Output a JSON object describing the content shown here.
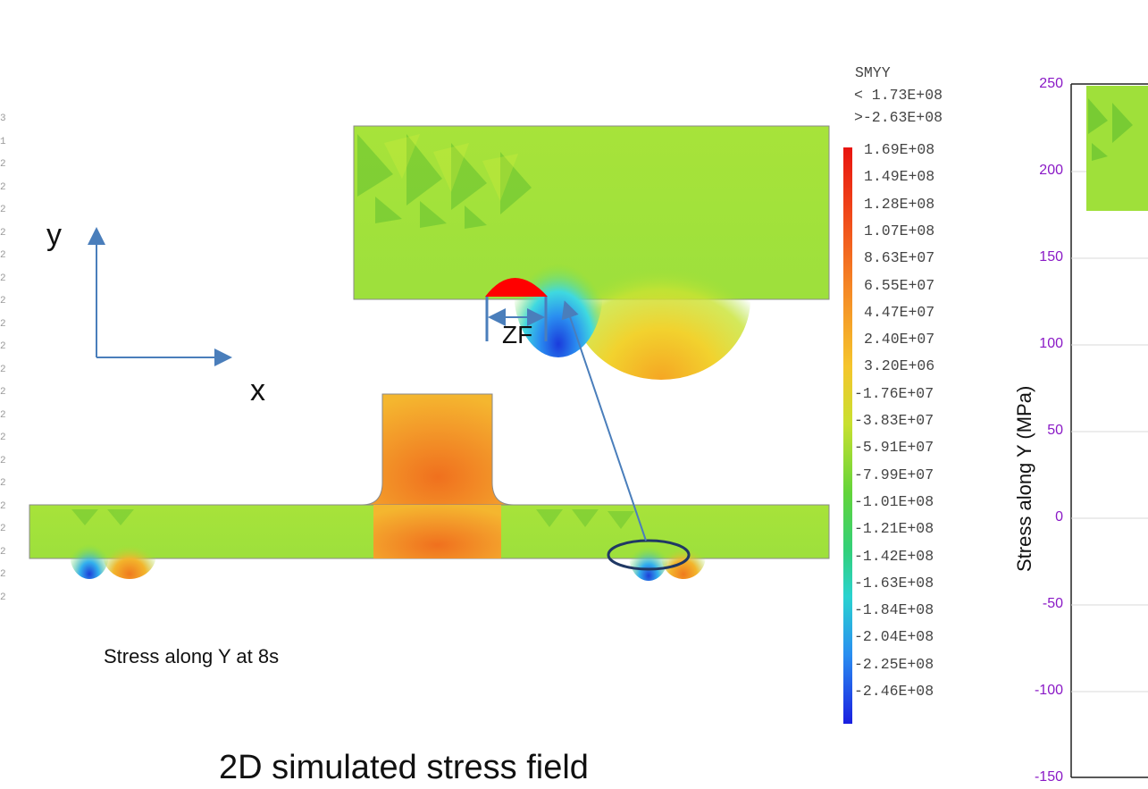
{
  "axes_labels": {
    "y": "y",
    "x": "x"
  },
  "zone_label": "ZF",
  "caption_small": "Stress along Y at 8s",
  "caption_large": "2D simulated stress field",
  "colorbar": {
    "title": "SMYY",
    "max_note": "< 1.73E+08",
    "min_note": ">-2.63E+08",
    "levels": [
      "1.69E+08",
      "1.49E+08",
      "1.28E+08",
      "1.07E+08",
      "8.63E+07",
      "6.55E+07",
      "4.47E+07",
      "2.40E+07",
      "3.20E+06",
      "-1.76E+07",
      "-3.83E+07",
      "-5.91E+07",
      "-7.99E+07",
      "-1.01E+08",
      "-1.21E+08",
      "-1.42E+08",
      "-1.63E+08",
      "-1.84E+08",
      "-2.04E+08",
      "-2.25E+08",
      "-2.46E+08"
    ]
  },
  "right_plot": {
    "ylabel": "Stress along Y (MPa)",
    "yticks": [
      "250",
      "200",
      "150",
      "100",
      "50",
      "0",
      "-50",
      "-100",
      "-150"
    ]
  },
  "left_margin_marks": [
    "3",
    "1",
    "2",
    "2",
    "2",
    "2",
    "2",
    "2",
    "2",
    "2",
    "2",
    "2",
    "2",
    "2",
    "2",
    "2",
    "2",
    "2",
    "2",
    "2",
    "2",
    "2"
  ],
  "colors": {
    "axis_arrow": "#4a7ebb",
    "zone_fill": "#ff0000",
    "ellipse": "#203864",
    "tick_color": "#8a19c6"
  }
}
